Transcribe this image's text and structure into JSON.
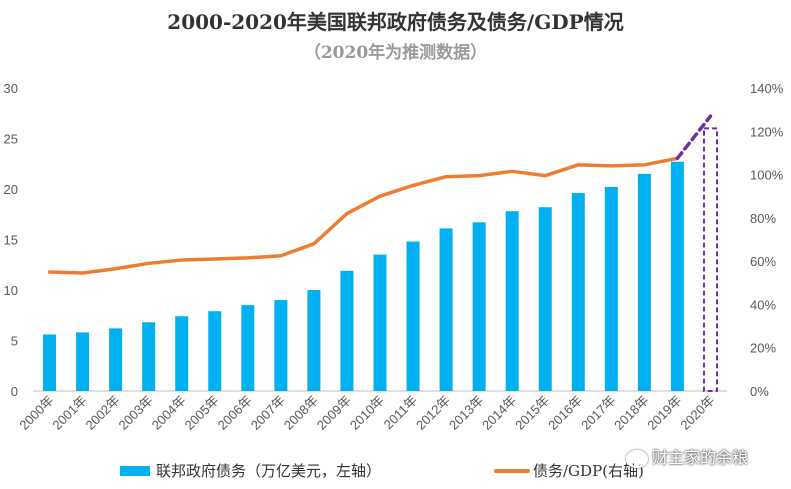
{
  "header": {
    "title": "2000-2020年美国联邦政府债务及债务/GDP情况",
    "subtitle": "（2020年为推测数据）"
  },
  "watermark": {
    "text": "财主家的余粮",
    "icon": "wechat-icon"
  },
  "chart_data": {
    "type": "bar",
    "categories": [
      "2000年",
      "2001年",
      "2002年",
      "2003年",
      "2004年",
      "2005年",
      "2006年",
      "2007年",
      "2008年",
      "2009年",
      "2010年",
      "2011年",
      "2012年",
      "2013年",
      "2014年",
      "2015年",
      "2016年",
      "2017年",
      "2018年",
      "2019年",
      "2020年"
    ],
    "y_left": {
      "ticks": [
        "0",
        "5",
        "10",
        "15",
        "20",
        "25",
        "30"
      ],
      "ylim": [
        0,
        30
      ]
    },
    "y_right": {
      "ticks": [
        "0%",
        "20%",
        "40%",
        "60%",
        "80%",
        "100%",
        "120%",
        "140%"
      ],
      "ylim": [
        0,
        140
      ]
    },
    "series": [
      {
        "name": "联邦政府债务（万亿美元，左轴）",
        "type": "bar",
        "axis": "left",
        "color": "#00b0f0",
        "values": [
          5.6,
          5.8,
          6.2,
          6.8,
          7.4,
          7.9,
          8.5,
          9.0,
          10.0,
          11.9,
          13.5,
          14.8,
          16.1,
          16.7,
          17.8,
          18.2,
          19.6,
          20.2,
          21.5,
          22.7,
          null
        ],
        "projected": {
          "category": "2020年",
          "value": 26.0,
          "style": "dashed-outline",
          "color": "#7030a0"
        }
      },
      {
        "name": "债务/GDP(右轴)",
        "type": "line",
        "axis": "right",
        "color": "#ed7d31",
        "values": [
          55,
          54.5,
          56.5,
          59,
          60.5,
          61,
          61.5,
          62.5,
          68,
          82,
          90,
          95,
          99,
          99.5,
          101.5,
          99.5,
          104.5,
          104,
          104.5,
          107.5,
          null
        ],
        "projected": {
          "from": "2019年",
          "to": "2020年",
          "value": 127,
          "style": "dashed",
          "color": "#7030a0"
        }
      }
    ],
    "legend_position": "bottom",
    "grid": false
  }
}
